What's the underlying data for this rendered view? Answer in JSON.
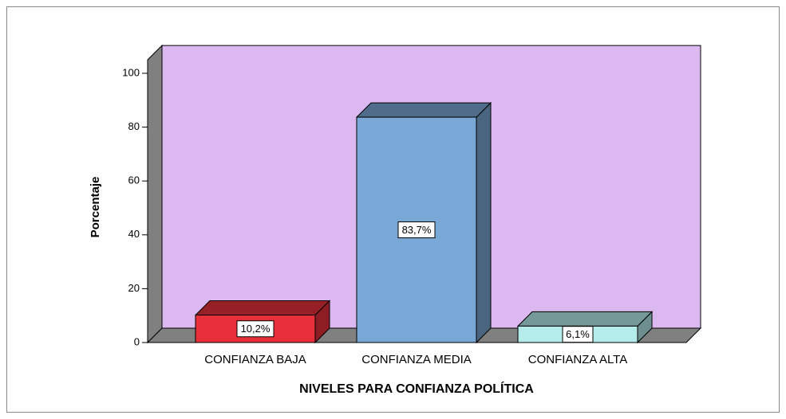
{
  "chart_data": {
    "type": "bar3d",
    "categories": [
      "CONFIANZA BAJA",
      "CONFIANZA MEDIA",
      "CONFIANZA ALTA"
    ],
    "values": [
      10.2,
      83.7,
      6.1
    ],
    "value_labels": [
      "10,2%",
      "83,7%",
      "6,1%"
    ],
    "colors": [
      "#e8303a",
      "#7aa8d6",
      "#b4ecec"
    ],
    "wall_color": "#dcb8f0",
    "xlabel": "NIVELES PARA CONFIANZA POLÍTICA",
    "ylabel": "Porcentaje",
    "ylim": [
      0,
      105
    ],
    "yticks": [
      0,
      20,
      40,
      60,
      80,
      100
    ]
  }
}
